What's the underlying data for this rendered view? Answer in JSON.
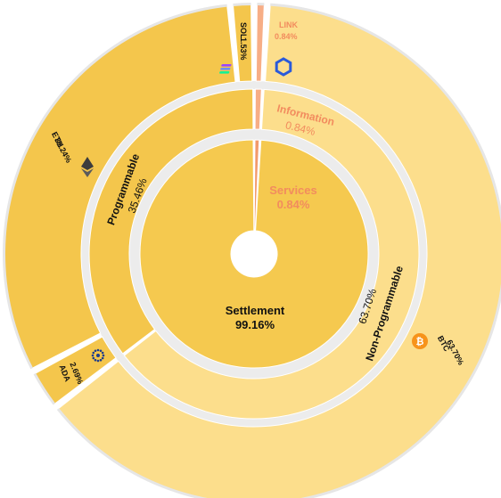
{
  "chart_data": {
    "type": "sunburst",
    "title": "",
    "rings": [
      {
        "level": "inner",
        "segments": [
          {
            "label": "Settlement",
            "value": 99.16,
            "value_label": "99.16%",
            "color": "#F5C94F"
          },
          {
            "label": "Services",
            "value": 0.84,
            "value_label": "0.84%",
            "color": "#F29A6B",
            "text_color": "#F28C5E"
          }
        ]
      },
      {
        "level": "middle",
        "segments": [
          {
            "label": "Non-Programmable",
            "value": 63.7,
            "value_label": "63.70%",
            "color": "#FCDE8C",
            "parent": "Settlement"
          },
          {
            "label": "Programmable",
            "value": 35.46,
            "value_label": "35.46%",
            "color": "#F4C64C",
            "parent": "Settlement"
          },
          {
            "label": "Information",
            "value": 0.84,
            "value_label": "0.84%",
            "color": "#F7AE86",
            "text_color": "#F28C5E",
            "parent": "Services"
          }
        ]
      },
      {
        "level": "outer",
        "segments": [
          {
            "label": "BTC",
            "value": 63.7,
            "value_label": "63.70%",
            "color": "#FCDE8C",
            "icon": "bitcoin-icon",
            "parent": "Non-Programmable"
          },
          {
            "label": "ADA",
            "value": 2.69,
            "value_label": "2.69%",
            "color": "#F4C64C",
            "icon": "cardano-icon",
            "parent": "Programmable"
          },
          {
            "label": "ETH",
            "value": 31.24,
            "value_label": "31.24%",
            "color": "#F4C64C",
            "icon": "ethereum-icon",
            "parent": "Programmable"
          },
          {
            "label": "SOL",
            "value": 1.53,
            "value_label": "1.53%",
            "color": "#F4C64C",
            "icon": "solana-icon",
            "parent": "Programmable"
          },
          {
            "label": "LINK",
            "value": 0.84,
            "value_label": "0.84%",
            "color": "#F7AE86",
            "text_color": "#F28C5E",
            "icon": "chainlink-icon",
            "parent": "Information"
          }
        ]
      }
    ],
    "legend": "none",
    "grid": false
  }
}
